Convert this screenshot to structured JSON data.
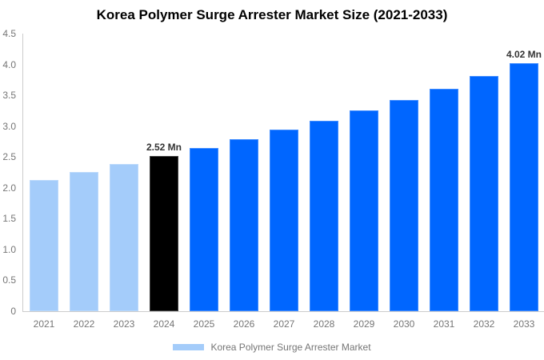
{
  "title": "Korea Polymer Surge Arrester Market Size (2021-2033)",
  "chart_data": {
    "type": "bar",
    "title": "Korea Polymer Surge Arrester Market Size (2021-2033)",
    "xlabel": "",
    "ylabel": "",
    "categories": [
      "2021",
      "2022",
      "2023",
      "2024",
      "2025",
      "2026",
      "2027",
      "2028",
      "2029",
      "2030",
      "2031",
      "2032",
      "2033"
    ],
    "values": [
      2.13,
      2.26,
      2.39,
      2.52,
      2.64,
      2.79,
      2.94,
      3.09,
      3.26,
      3.43,
      3.61,
      3.81,
      4.02
    ],
    "unit": "Mn",
    "bar_colors": [
      "#a4ccfa",
      "#a4ccfa",
      "#a4ccfa",
      "#000000",
      "#0066ff",
      "#0066ff",
      "#0066ff",
      "#0066ff",
      "#0066ff",
      "#0066ff",
      "#0066ff",
      "#0066ff",
      "#0066ff"
    ],
    "data_labels": [
      {
        "category": "2024",
        "text": "2.52 Mn"
      },
      {
        "category": "2033",
        "text": "4.02 Mn"
      }
    ],
    "ylim": [
      0,
      4.5
    ],
    "yticks": [
      "0",
      "0.5",
      "1.0",
      "1.5",
      "2.0",
      "2.5",
      "3.0",
      "3.5",
      "4.0",
      "4.5"
    ],
    "grid": false,
    "legend": {
      "position": "bottom",
      "items": [
        {
          "label": "Korea Polymer Surge Arrester Market",
          "color": "#a4ccfa"
        }
      ]
    }
  },
  "colors": {
    "historical_bar": "#a4ccfa",
    "highlight_bar": "#000000",
    "forecast_bar": "#0066ff",
    "axis_line": "#cccccc",
    "tick_text": "#757575",
    "data_label_text": "#333333",
    "title_text": "#000000"
  }
}
